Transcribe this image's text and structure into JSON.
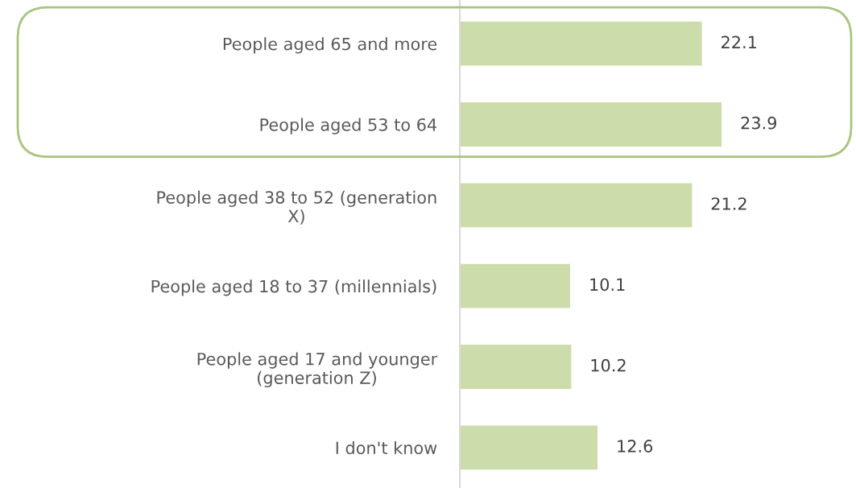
{
  "chart_data": {
    "type": "bar",
    "orientation": "horizontal",
    "categories": [
      "People aged 65 and more",
      "People aged 53 to 64",
      "People aged 38 to 52 (generation\nX)",
      "People aged 18 to 37 (millennials)",
      "People aged 17 and younger\n(generation Z)",
      "I don't know"
    ],
    "values": [
      22.1,
      23.9,
      21.2,
      10.1,
      10.2,
      12.6
    ],
    "color": "#cddcab",
    "data_labels": true,
    "grid": false
  }
}
